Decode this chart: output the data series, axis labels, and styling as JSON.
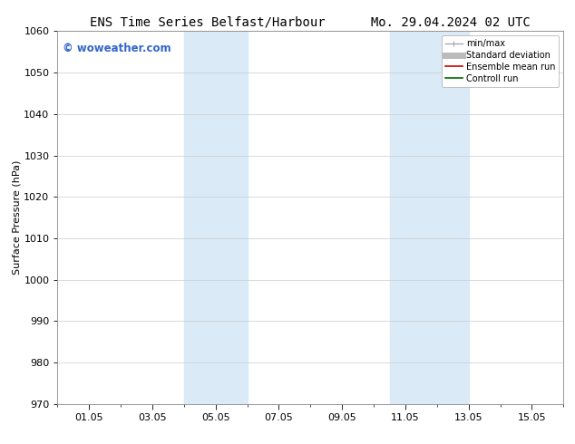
{
  "title_left": "ENS Time Series Belfast/Harbour",
  "title_right": "Mo. 29.04.2024 02 UTC",
  "ylabel": "Surface Pressure (hPa)",
  "xlim": [
    0,
    15.5
  ],
  "ylim": [
    970,
    1060
  ],
  "yticks": [
    970,
    980,
    990,
    1000,
    1010,
    1020,
    1030,
    1040,
    1050,
    1060
  ],
  "xtick_labels": [
    "01.05",
    "03.05",
    "05.05",
    "07.05",
    "09.05",
    "11.05",
    "13.05",
    "15.05"
  ],
  "xtick_positions": [
    1,
    3,
    5,
    7,
    9,
    11,
    13,
    15
  ],
  "shaded_bands": [
    {
      "x_start": 4.0,
      "x_end": 6.0
    },
    {
      "x_start": 10.5,
      "x_end": 13.0
    }
  ],
  "shaded_color": "#daeaf7",
  "watermark_text": "© woweather.com",
  "watermark_color": "#3366cc",
  "legend_items": [
    {
      "label": "min/max",
      "color": "#aaaaaa",
      "lw": 1.0,
      "style": "errorbar"
    },
    {
      "label": "Standard deviation",
      "color": "#bbbbbb",
      "lw": 5,
      "style": "line"
    },
    {
      "label": "Ensemble mean run",
      "color": "#cc0000",
      "lw": 1.2,
      "style": "line"
    },
    {
      "label": "Controll run",
      "color": "#006600",
      "lw": 1.2,
      "style": "line"
    }
  ],
  "bg_color": "#ffffff",
  "grid_color": "#cccccc",
  "title_fontsize": 10,
  "axis_label_fontsize": 8,
  "tick_fontsize": 8,
  "legend_fontsize": 7,
  "watermark_fontsize": 8.5
}
